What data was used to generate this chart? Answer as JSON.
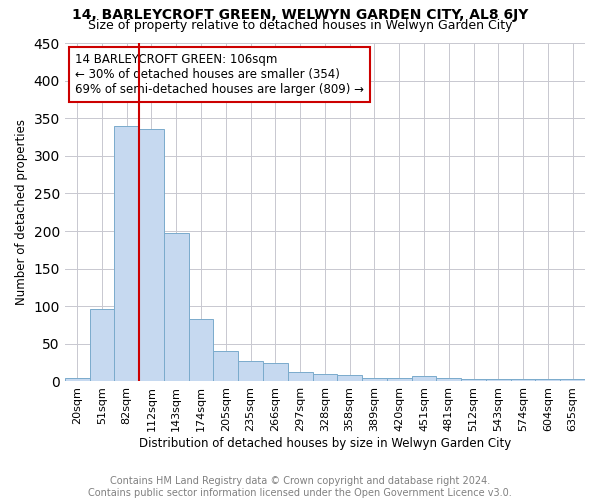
{
  "title": "14, BARLEYCROFT GREEN, WELWYN GARDEN CITY, AL8 6JY",
  "subtitle": "Size of property relative to detached houses in Welwyn Garden City",
  "xlabel": "Distribution of detached houses by size in Welwyn Garden City",
  "ylabel": "Number of detached properties",
  "annotation_line1": "14 BARLEYCROFT GREEN: 106sqm",
  "annotation_line2": "← 30% of detached houses are smaller (354)",
  "annotation_line3": "69% of semi-detached houses are larger (809) →",
  "footer_line1": "Contains HM Land Registry data © Crown copyright and database right 2024.",
  "footer_line2": "Contains public sector information licensed under the Open Government Licence v3.0.",
  "bar_color": "#c6d9f0",
  "bar_edge_color": "#7aabcc",
  "line_color": "#cc0000",
  "annotation_box_edge": "#cc0000",
  "grid_color": "#c8c8d0",
  "categories": [
    "20sqm",
    "51sqm",
    "82sqm",
    "112sqm",
    "143sqm",
    "174sqm",
    "205sqm",
    "235sqm",
    "266sqm",
    "297sqm",
    "328sqm",
    "358sqm",
    "389sqm",
    "420sqm",
    "451sqm",
    "481sqm",
    "512sqm",
    "543sqm",
    "574sqm",
    "604sqm",
    "635sqm"
  ],
  "values": [
    5,
    97,
    340,
    335,
    197,
    83,
    40,
    27,
    25,
    12,
    10,
    8,
    4,
    4,
    7,
    4,
    3,
    3,
    3,
    3,
    3
  ],
  "property_bin_index": 2,
  "ylim": [
    0,
    450
  ],
  "yticks": [
    0,
    50,
    100,
    150,
    200,
    250,
    300,
    350,
    400,
    450
  ],
  "title_fontsize": 10,
  "subtitle_fontsize": 9,
  "axis_label_fontsize": 8.5,
  "tick_fontsize": 8,
  "annotation_fontsize": 8.5,
  "footer_fontsize": 7
}
